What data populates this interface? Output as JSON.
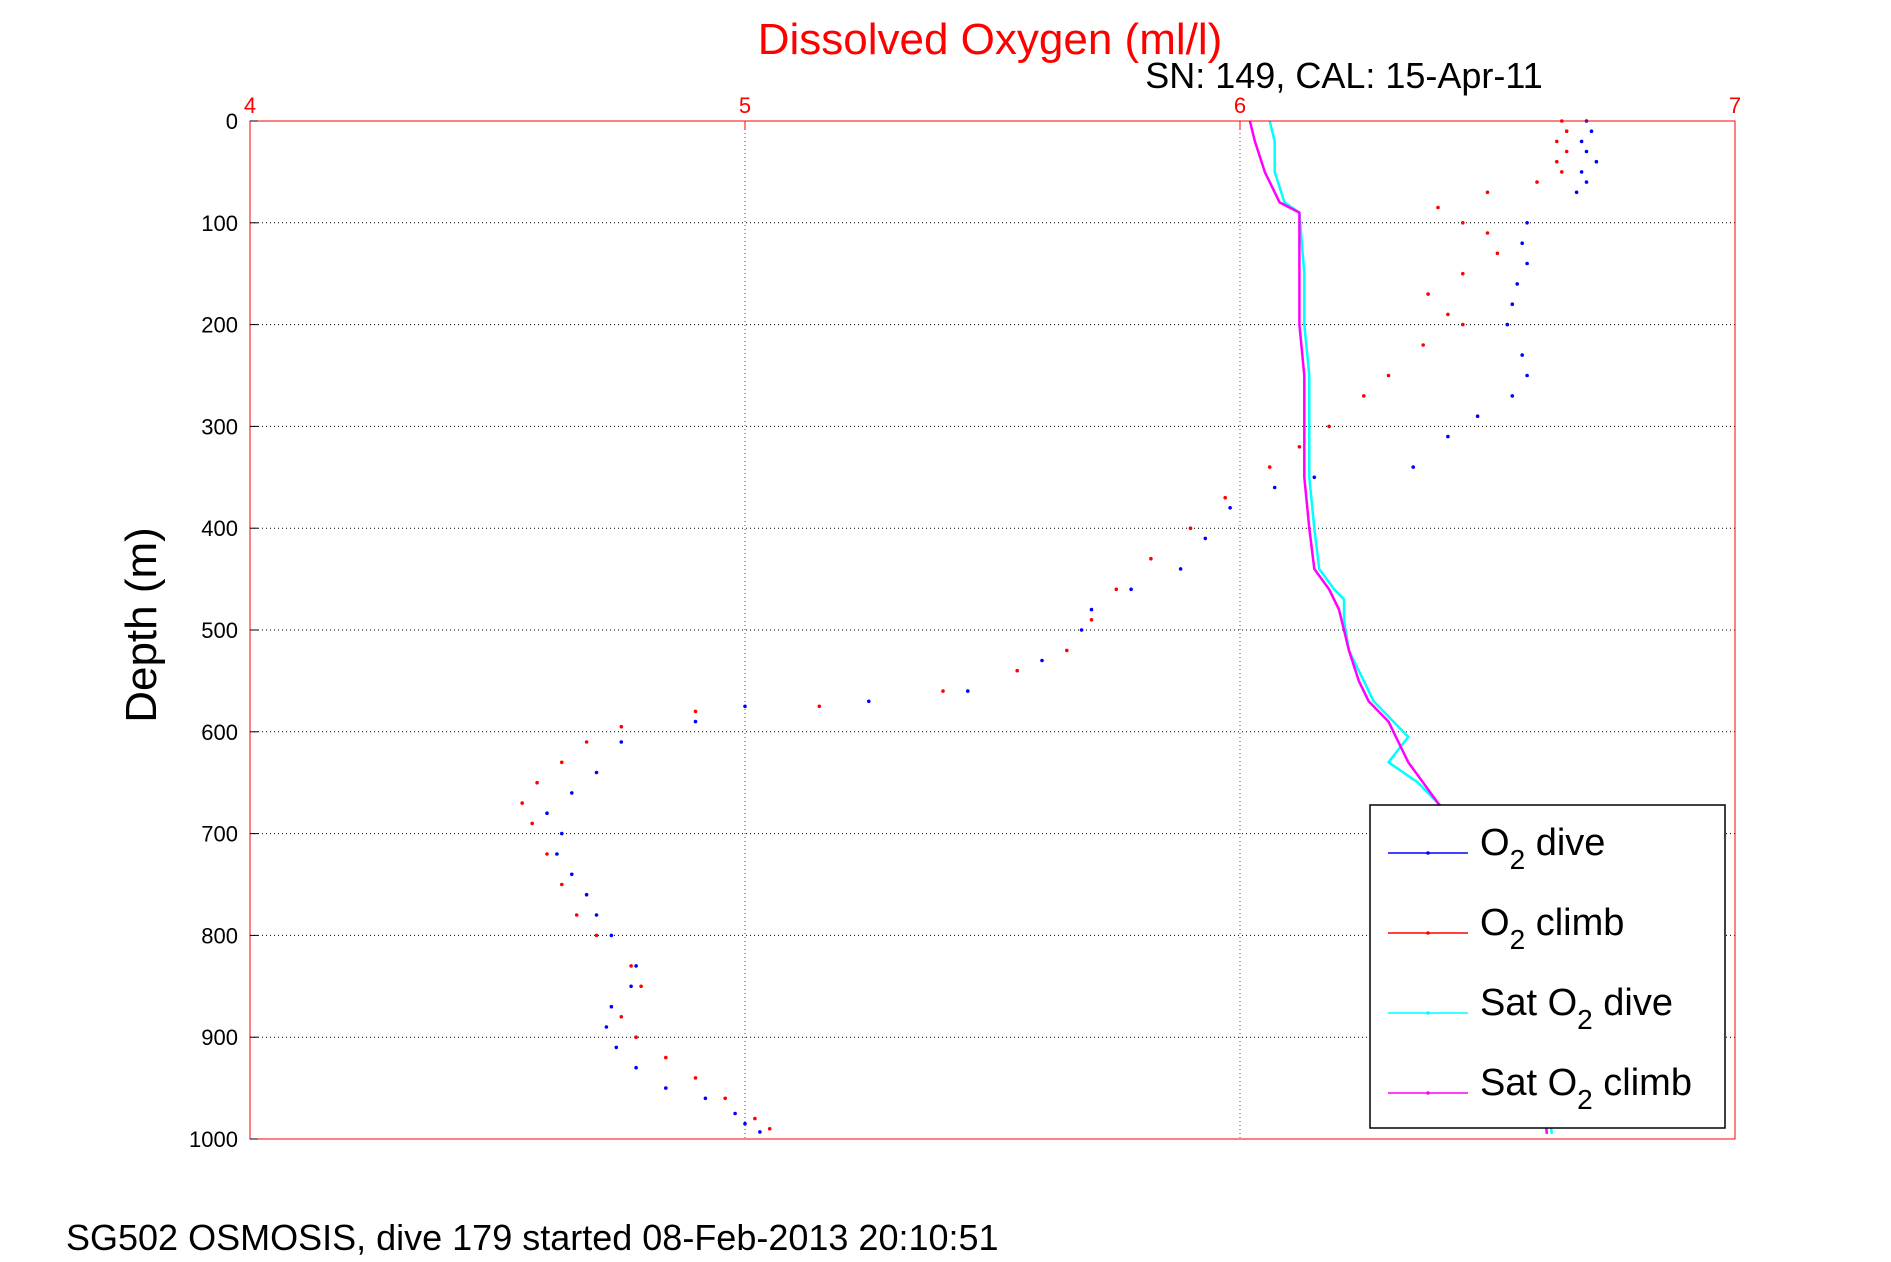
{
  "chart_data": {
    "type": "scatter",
    "title": "Dissolved Oxygen (ml/l)",
    "subtitle": "SN: 149, CAL: 15-Apr-11",
    "ylabel": "Depth (m)",
    "footer": "SG502 OSMOSIS, dive 179 started 08-Feb-2013 20:10:51",
    "x_ticks": [
      "4",
      "5",
      "6",
      "7"
    ],
    "y_ticks": [
      "0",
      "100",
      "200",
      "300",
      "400",
      "500",
      "600",
      "700",
      "800",
      "900",
      "1000"
    ],
    "xlim": [
      4,
      7
    ],
    "ylim": [
      0,
      1000
    ],
    "y_reversed": true,
    "x_axis_position": "top",
    "grid": true,
    "legend_position": "bottom-right",
    "colors": {
      "title": "#ff0000",
      "x_ticks": "#ff0000",
      "grid": "#000000",
      "frame": "#ff0000"
    },
    "legend": [
      {
        "prefix": "O",
        "sub": "2",
        "suffix": " dive",
        "color": "#0000ff"
      },
      {
        "prefix": "O",
        "sub": "2",
        "suffix": " climb",
        "color": "#ff0000"
      },
      {
        "prefix": "Sat O",
        "sub": "2",
        "suffix": " dive",
        "color": "#00ffff"
      },
      {
        "prefix": "Sat O",
        "sub": "2",
        "suffix": " climb",
        "color": "#ff00ff"
      }
    ],
    "series": [
      {
        "name": "O2 dive",
        "color": "#0000ff",
        "style": "points",
        "points": [
          [
            6.7,
            0
          ],
          [
            6.71,
            10
          ],
          [
            6.69,
            20
          ],
          [
            6.7,
            30
          ],
          [
            6.72,
            40
          ],
          [
            6.69,
            50
          ],
          [
            6.7,
            60
          ],
          [
            6.68,
            70
          ],
          [
            6.58,
            100
          ],
          [
            6.57,
            120
          ],
          [
            6.58,
            140
          ],
          [
            6.56,
            160
          ],
          [
            6.55,
            180
          ],
          [
            6.54,
            200
          ],
          [
            6.57,
            230
          ],
          [
            6.58,
            250
          ],
          [
            6.55,
            270
          ],
          [
            6.48,
            290
          ],
          [
            6.42,
            310
          ],
          [
            6.35,
            340
          ],
          [
            6.15,
            350
          ],
          [
            6.07,
            360
          ],
          [
            5.98,
            380
          ],
          [
            5.93,
            410
          ],
          [
            5.88,
            440
          ],
          [
            5.78,
            460
          ],
          [
            5.7,
            480
          ],
          [
            5.68,
            500
          ],
          [
            5.6,
            530
          ],
          [
            5.45,
            560
          ],
          [
            5.25,
            570
          ],
          [
            5.0,
            575
          ],
          [
            4.9,
            590
          ],
          [
            4.75,
            610
          ],
          [
            4.7,
            640
          ],
          [
            4.65,
            660
          ],
          [
            4.6,
            680
          ],
          [
            4.63,
            700
          ],
          [
            4.62,
            720
          ],
          [
            4.65,
            740
          ],
          [
            4.68,
            760
          ],
          [
            4.7,
            780
          ],
          [
            4.73,
            800
          ],
          [
            4.78,
            830
          ],
          [
            4.77,
            850
          ],
          [
            4.73,
            870
          ],
          [
            4.72,
            890
          ],
          [
            4.74,
            910
          ],
          [
            4.78,
            930
          ],
          [
            4.84,
            950
          ],
          [
            4.92,
            960
          ],
          [
            4.98,
            975
          ],
          [
            5.0,
            985
          ],
          [
            5.03,
            993
          ]
        ]
      },
      {
        "name": "O2 climb",
        "color": "#ff0000",
        "style": "points",
        "points": [
          [
            6.65,
            0
          ],
          [
            6.66,
            10
          ],
          [
            6.64,
            20
          ],
          [
            6.66,
            30
          ],
          [
            6.64,
            40
          ],
          [
            6.65,
            50
          ],
          [
            6.6,
            60
          ],
          [
            6.5,
            70
          ],
          [
            6.4,
            85
          ],
          [
            6.45,
            100
          ],
          [
            6.5,
            110
          ],
          [
            6.52,
            130
          ],
          [
            6.45,
            150
          ],
          [
            6.38,
            170
          ],
          [
            6.42,
            190
          ],
          [
            6.45,
            200
          ],
          [
            6.37,
            220
          ],
          [
            6.3,
            250
          ],
          [
            6.25,
            270
          ],
          [
            6.18,
            300
          ],
          [
            6.12,
            320
          ],
          [
            6.06,
            340
          ],
          [
            5.97,
            370
          ],
          [
            5.9,
            400
          ],
          [
            5.82,
            430
          ],
          [
            5.75,
            460
          ],
          [
            5.7,
            490
          ],
          [
            5.65,
            520
          ],
          [
            5.55,
            540
          ],
          [
            5.4,
            560
          ],
          [
            5.15,
            575
          ],
          [
            4.9,
            580
          ],
          [
            4.75,
            595
          ],
          [
            4.68,
            610
          ],
          [
            4.63,
            630
          ],
          [
            4.58,
            650
          ],
          [
            4.55,
            670
          ],
          [
            4.57,
            690
          ],
          [
            4.6,
            720
          ],
          [
            4.63,
            750
          ],
          [
            4.66,
            780
          ],
          [
            4.7,
            800
          ],
          [
            4.77,
            830
          ],
          [
            4.79,
            850
          ],
          [
            4.75,
            880
          ],
          [
            4.78,
            900
          ],
          [
            4.84,
            920
          ],
          [
            4.9,
            940
          ],
          [
            4.96,
            960
          ],
          [
            5.02,
            980
          ],
          [
            5.05,
            990
          ]
        ]
      },
      {
        "name": "Sat O2 dive",
        "color": "#00ffff",
        "style": "line",
        "points": [
          [
            6.06,
            0
          ],
          [
            6.07,
            20
          ],
          [
            6.07,
            50
          ],
          [
            6.09,
            80
          ],
          [
            6.12,
            90
          ],
          [
            6.13,
            150
          ],
          [
            6.13,
            200
          ],
          [
            6.14,
            250
          ],
          [
            6.14,
            300
          ],
          [
            6.14,
            350
          ],
          [
            6.15,
            400
          ],
          [
            6.16,
            440
          ],
          [
            6.19,
            460
          ],
          [
            6.21,
            470
          ],
          [
            6.21,
            490
          ],
          [
            6.22,
            520
          ],
          [
            6.25,
            550
          ],
          [
            6.27,
            570
          ],
          [
            6.31,
            590
          ],
          [
            6.34,
            605
          ],
          [
            6.3,
            630
          ],
          [
            6.36,
            650
          ],
          [
            6.4,
            670
          ],
          [
            6.44,
            690
          ],
          [
            6.46,
            720
          ],
          [
            6.5,
            760
          ],
          [
            6.55,
            800
          ],
          [
            6.58,
            850
          ],
          [
            6.6,
            900
          ],
          [
            6.62,
            950
          ],
          [
            6.63,
            995
          ]
        ]
      },
      {
        "name": "Sat O2 climb",
        "color": "#ff00ff",
        "style": "line",
        "points": [
          [
            6.02,
            0
          ],
          [
            6.03,
            20
          ],
          [
            6.05,
            50
          ],
          [
            6.08,
            80
          ],
          [
            6.12,
            90
          ],
          [
            6.12,
            150
          ],
          [
            6.12,
            200
          ],
          [
            6.13,
            250
          ],
          [
            6.13,
            300
          ],
          [
            6.13,
            350
          ],
          [
            6.14,
            400
          ],
          [
            6.15,
            440
          ],
          [
            6.18,
            460
          ],
          [
            6.2,
            480
          ],
          [
            6.21,
            500
          ],
          [
            6.22,
            520
          ],
          [
            6.24,
            550
          ],
          [
            6.26,
            570
          ],
          [
            6.3,
            590
          ],
          [
            6.32,
            610
          ],
          [
            6.34,
            630
          ],
          [
            6.37,
            650
          ],
          [
            6.4,
            670
          ],
          [
            6.44,
            690
          ],
          [
            6.47,
            720
          ],
          [
            6.51,
            760
          ],
          [
            6.55,
            800
          ],
          [
            6.58,
            850
          ],
          [
            6.6,
            900
          ],
          [
            6.61,
            950
          ],
          [
            6.62,
            995
          ]
        ]
      }
    ]
  }
}
